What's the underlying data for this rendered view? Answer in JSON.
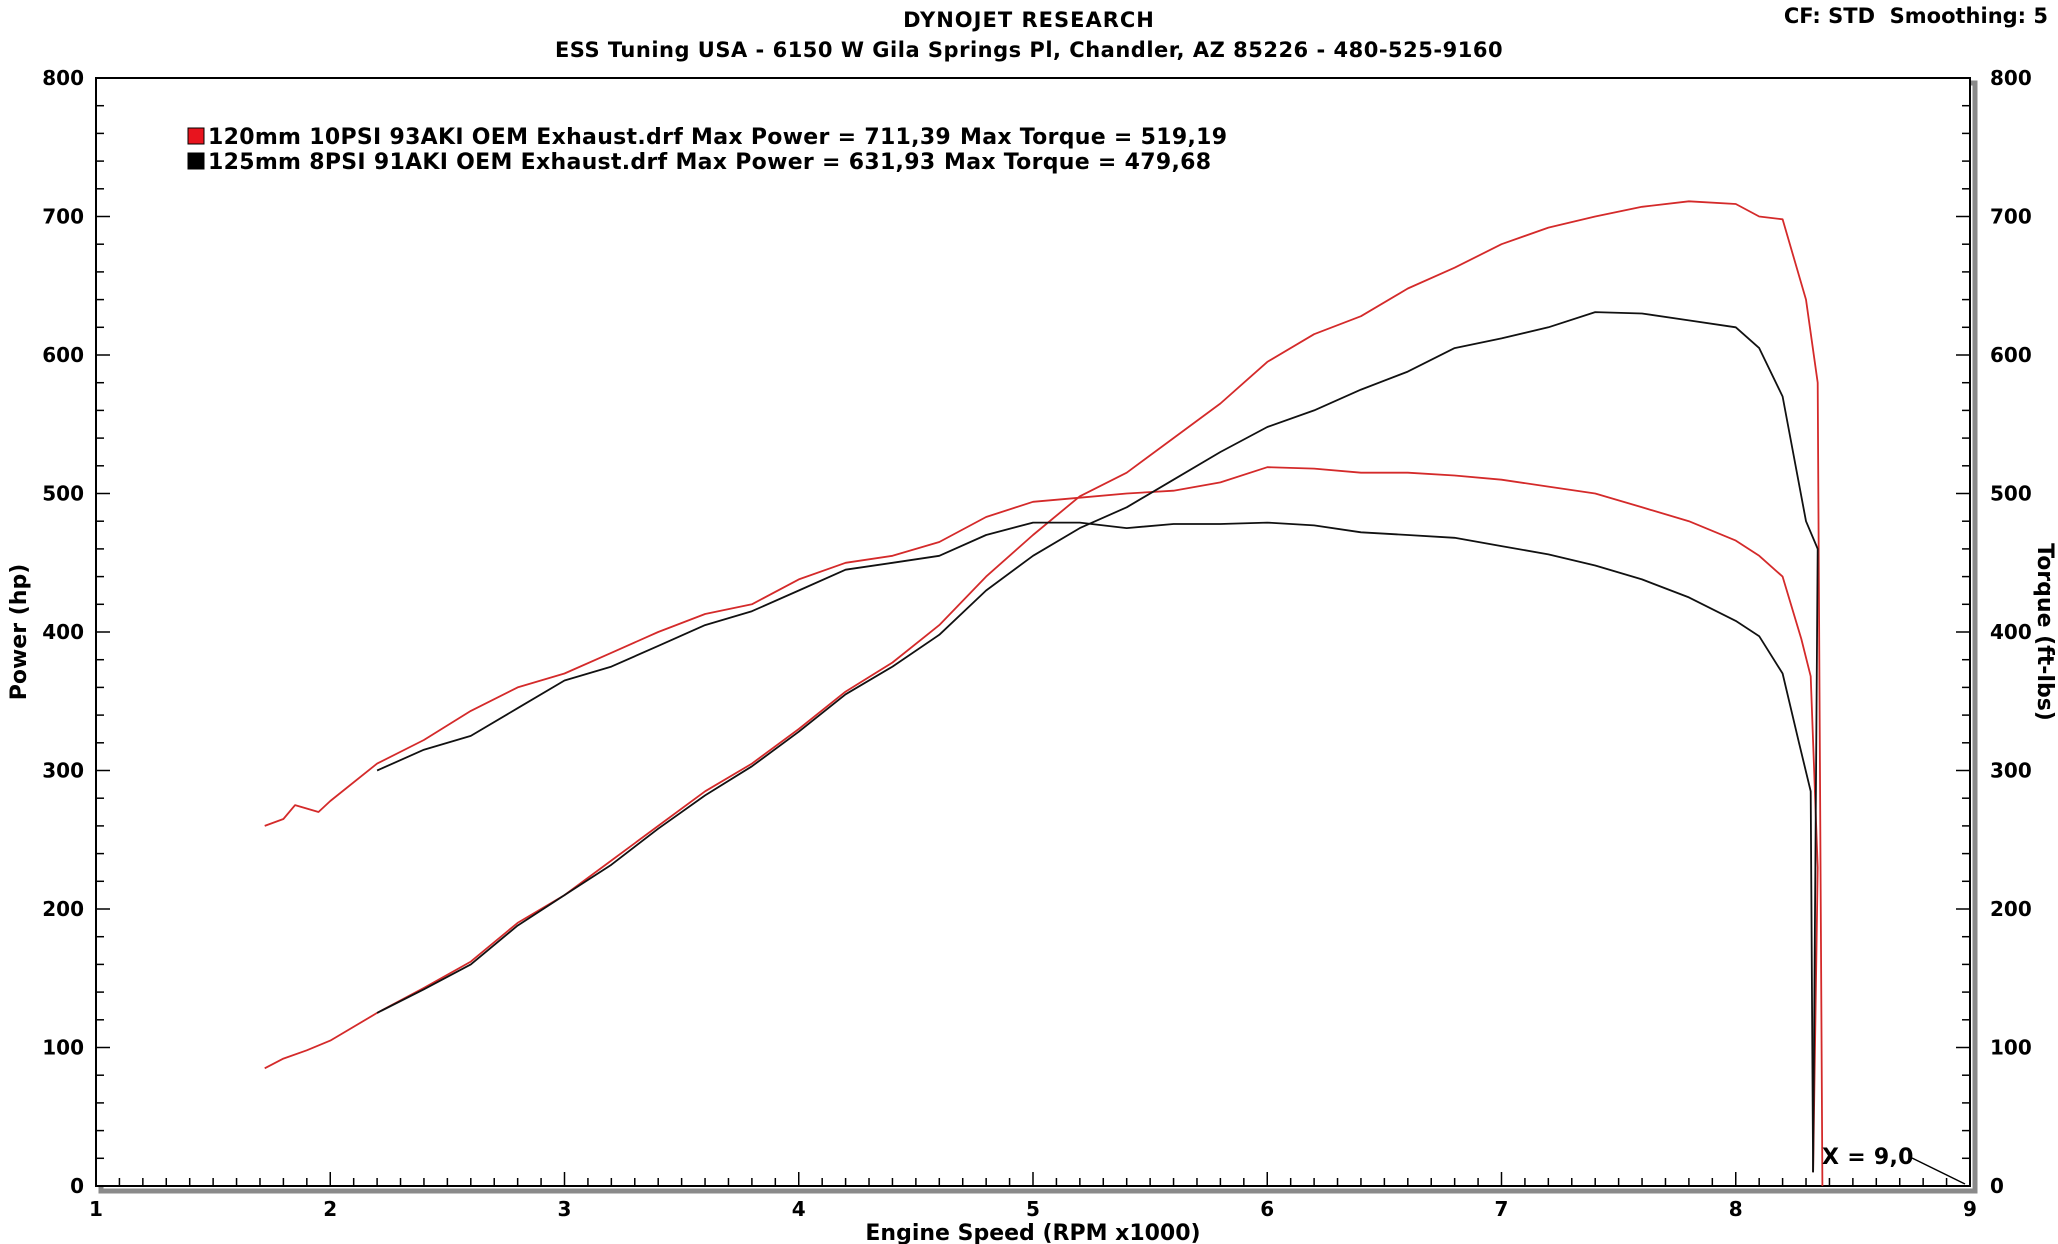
{
  "header": {
    "title": "DYNOJET RESEARCH",
    "subtitle": "ESS Tuning USA - 6150 W Gila Springs Pl, Chandler, AZ 85226 - 480-525-9160",
    "correction": "CF: STD",
    "smoothing": "Smoothing: 5"
  },
  "chart_data": {
    "type": "line",
    "xlabel": "Engine Speed (RPM x1000)",
    "ylabel": "Power (hp)",
    "y2label": "Torque (ft-lbs)",
    "xlim": [
      1,
      9
    ],
    "ylim": [
      0,
      800
    ],
    "y2lim": [
      0,
      800
    ],
    "x_ticks": [
      "1",
      "2",
      "3",
      "4",
      "5",
      "6",
      "7",
      "8",
      "9"
    ],
    "y_ticks": [
      "0",
      "100",
      "200",
      "300",
      "400",
      "500",
      "600",
      "700",
      "800"
    ],
    "grid": true,
    "legend_position": "top-left",
    "legend": [
      {
        "color": "#e8141e",
        "text": "120mm 10PSI 93AKI OEM Exhaust.drf Max Power = 711,39",
        "torque_text": "Max Torque = 519,19"
      },
      {
        "color": "#000000",
        "text": "125mm 8PSI 91AKI OEM Exhaust.drf Max Power = 631,93",
        "torque_text": "Max Torque = 479,68"
      }
    ],
    "cursor_label": "X = 9,0",
    "series": [
      {
        "name": "120mm 10PSI 93AKI OEM Exhaust.drf",
        "color": "#d42a2a",
        "power": {
          "x": [
            1.72,
            1.8,
            1.9,
            2.0,
            2.2,
            2.4,
            2.6,
            2.8,
            3.0,
            3.2,
            3.4,
            3.6,
            3.8,
            4.0,
            4.2,
            4.4,
            4.6,
            4.8,
            5.0,
            5.2,
            5.4,
            5.6,
            5.8,
            6.0,
            6.2,
            6.4,
            6.6,
            6.8,
            7.0,
            7.2,
            7.4,
            7.6,
            7.8,
            8.0,
            8.1,
            8.2,
            8.3,
            8.35,
            8.37
          ],
          "y": [
            85,
            92,
            98,
            105,
            125,
            143,
            162,
            190,
            210,
            235,
            260,
            285,
            305,
            330,
            357,
            378,
            405,
            440,
            470,
            498,
            515,
            540,
            565,
            595,
            615,
            628,
            648,
            663,
            680,
            692,
            700,
            707,
            711,
            709,
            700,
            698,
            640,
            580,
            0
          ]
        },
        "torque": {
          "x": [
            1.72,
            1.8,
            1.85,
            1.95,
            2.0,
            2.2,
            2.4,
            2.6,
            2.8,
            3.0,
            3.2,
            3.4,
            3.6,
            3.8,
            4.0,
            4.2,
            4.4,
            4.6,
            4.8,
            5.0,
            5.2,
            5.4,
            5.6,
            5.8,
            6.0,
            6.2,
            6.4,
            6.6,
            6.8,
            7.0,
            7.2,
            7.4,
            7.6,
            7.8,
            8.0,
            8.1,
            8.2,
            8.28,
            8.32,
            8.35,
            8.33
          ],
          "y": [
            260,
            265,
            275,
            270,
            278,
            305,
            322,
            343,
            360,
            370,
            385,
            400,
            413,
            420,
            438,
            450,
            455,
            465,
            483,
            494,
            497,
            500,
            502,
            508,
            519,
            518,
            515,
            515,
            513,
            510,
            505,
            500,
            490,
            480,
            466,
            455,
            440,
            395,
            368,
            230,
            10
          ]
        }
      },
      {
        "name": "125mm 8PSI 91AKI OEM Exhaust.drf",
        "color": "#111111",
        "power": {
          "x": [
            2.2,
            2.4,
            2.6,
            2.8,
            3.0,
            3.2,
            3.4,
            3.6,
            3.8,
            4.0,
            4.2,
            4.4,
            4.6,
            4.8,
            5.0,
            5.2,
            5.4,
            5.6,
            5.8,
            6.0,
            6.2,
            6.4,
            6.6,
            6.8,
            7.0,
            7.2,
            7.4,
            7.6,
            7.8,
            8.0,
            8.1,
            8.2,
            8.3,
            8.35,
            8.33
          ],
          "y": [
            125,
            142,
            160,
            188,
            210,
            232,
            258,
            282,
            303,
            328,
            355,
            375,
            398,
            430,
            455,
            475,
            490,
            510,
            530,
            548,
            560,
            575,
            588,
            605,
            612,
            620,
            631,
            630,
            625,
            620,
            605,
            570,
            480,
            460,
            10
          ]
        },
        "torque": {
          "x": [
            2.2,
            2.4,
            2.6,
            2.8,
            3.0,
            3.2,
            3.4,
            3.6,
            3.8,
            4.0,
            4.2,
            4.4,
            4.6,
            4.8,
            5.0,
            5.2,
            5.4,
            5.6,
            5.8,
            6.0,
            6.2,
            6.4,
            6.6,
            6.8,
            7.0,
            7.2,
            7.4,
            7.6,
            7.8,
            8.0,
            8.1,
            8.2,
            8.27,
            8.32,
            8.33
          ],
          "y": [
            300,
            315,
            325,
            345,
            365,
            375,
            390,
            405,
            415,
            430,
            445,
            450,
            455,
            470,
            479,
            479,
            475,
            478,
            478,
            479,
            477,
            472,
            470,
            468,
            462,
            456,
            448,
            438,
            425,
            408,
            397,
            370,
            320,
            285,
            10
          ]
        }
      }
    ]
  }
}
